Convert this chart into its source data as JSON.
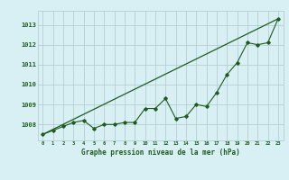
{
  "x": [
    0,
    1,
    2,
    3,
    4,
    5,
    6,
    7,
    8,
    9,
    10,
    11,
    12,
    13,
    14,
    15,
    16,
    17,
    18,
    19,
    20,
    21,
    22,
    23
  ],
  "line1": [
    1007.5,
    1007.7,
    1007.9,
    1008.1,
    1008.2,
    1007.8,
    1008.0,
    1008.0,
    1008.1,
    1008.1,
    1008.8,
    1008.8,
    1009.3,
    1008.3,
    1008.4,
    1009.0,
    1008.9,
    1009.6,
    1010.5,
    1011.1,
    1012.1,
    1012.0,
    1012.1,
    1013.3
  ],
  "trend_x": [
    0,
    23
  ],
  "trend_y": [
    1007.5,
    1013.3
  ],
  "bg_color": "#d8eff4",
  "line_color": "#1e5c1e",
  "grid_color": "#adc9d0",
  "label_color": "#1e5c1e",
  "ylabel_ticks": [
    1008,
    1009,
    1010,
    1011,
    1012,
    1013
  ],
  "xlabel": "Graphe pression niveau de la mer (hPa)",
  "ylim": [
    1007.2,
    1013.7
  ],
  "xlim": [
    -0.5,
    23.5
  ],
  "figwidth": 3.2,
  "figheight": 2.0,
  "dpi": 100
}
